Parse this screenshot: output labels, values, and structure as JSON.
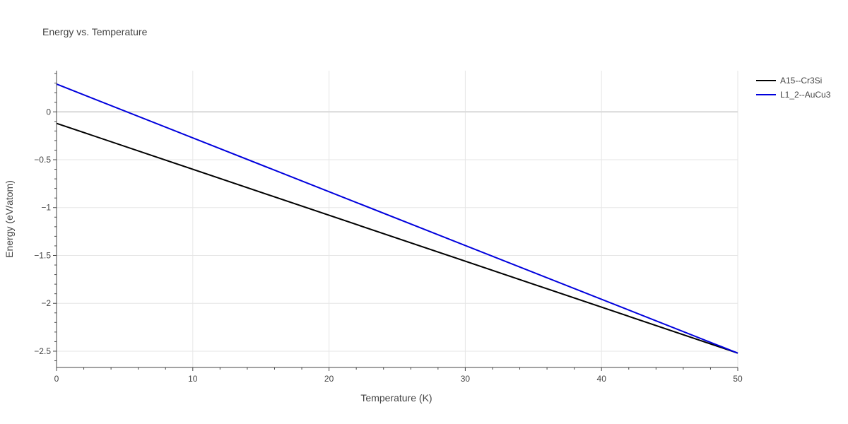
{
  "chart_data": {
    "type": "line",
    "title": "Energy vs. Temperature",
    "xlabel": "Temperature (K)",
    "ylabel": "Energy (eV/atom)",
    "xlim": [
      0,
      50
    ],
    "ylim": [
      -2.67,
      0.43
    ],
    "xticks": [
      0,
      10,
      20,
      30,
      40,
      50
    ],
    "xtick_labels": [
      "0",
      "10",
      "20",
      "30",
      "40",
      "50"
    ],
    "yticks": [
      0,
      -0.5,
      -1,
      -1.5,
      -2,
      -2.5
    ],
    "ytick_labels": [
      "0",
      "−0.5",
      "−1",
      "−1.5",
      "−2",
      "−2.5"
    ],
    "grid": true,
    "legend_position": "top-right",
    "series": [
      {
        "name": "A15--Cr3Si",
        "color": "#000000",
        "x": [
          0,
          50
        ],
        "y": [
          -0.12,
          -2.52
        ]
      },
      {
        "name": "L1_2--AuCu3",
        "color": "#0000dd",
        "x": [
          0,
          50
        ],
        "y": [
          0.29,
          -2.52
        ]
      }
    ]
  }
}
